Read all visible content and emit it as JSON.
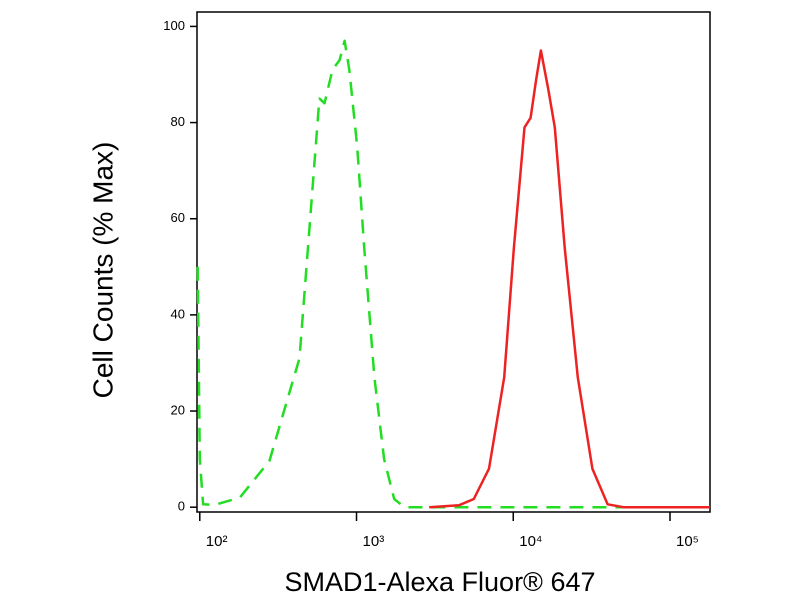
{
  "chart_data": {
    "type": "line",
    "x_label": "SMAD1-Alexa Fluor® 647",
    "y_label": "Cell Counts (% Max)",
    "xscale": "log",
    "xlim": [
      96,
      180000
    ],
    "ylim": [
      -1,
      103
    ],
    "xticks": [
      {
        "value": 100,
        "label": "10²"
      },
      {
        "value": 1000,
        "label": "10³"
      },
      {
        "value": 10000,
        "label": "10⁴"
      },
      {
        "value": 100000,
        "label": "10⁵"
      }
    ],
    "yticks": [
      0,
      20,
      40,
      60,
      80,
      100
    ],
    "series": [
      {
        "color": "#22dd22",
        "dash": true,
        "x": [
          97,
          100,
          105,
          125,
          180,
          278,
          433,
          580,
          625,
          703,
          780,
          840,
          900,
          1010,
          1120,
          1300,
          1500,
          1740,
          2020,
          150000
        ],
        "values": [
          50,
          10,
          0.6,
          0.5,
          2,
          9.6,
          31,
          85,
          84,
          91,
          93,
          97,
          91,
          75,
          54,
          27,
          10,
          1.7,
          0,
          0
        ]
      },
      {
        "color": "#ee2222",
        "dash": false,
        "x": [
          2910,
          4500,
          5600,
          7000,
          8750,
          10100,
          11800,
          12900,
          14000,
          15000,
          16700,
          18400,
          21300,
          25800,
          32000,
          40000,
          50500,
          180000
        ],
        "values": [
          0,
          0.4,
          1.7,
          8,
          27,
          54,
          79,
          81,
          89,
          95,
          87,
          79,
          54,
          27,
          8,
          0.6,
          0,
          0
        ]
      }
    ]
  }
}
